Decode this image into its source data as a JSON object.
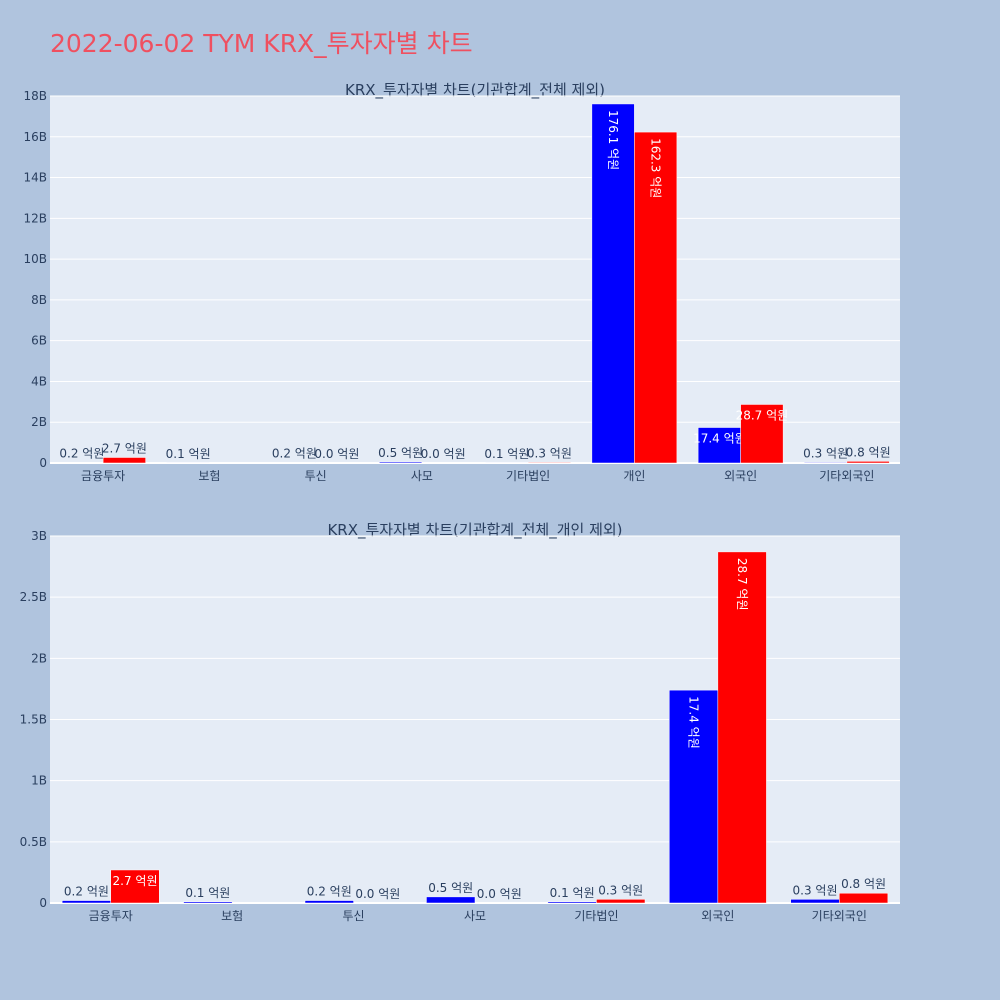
{
  "page": {
    "title": "2022-06-02 TYM KRX_투자자별 차트"
  },
  "colors": {
    "background": "#b0c4de",
    "plot_bg": "#e5ecf6",
    "buy": "#0000ff",
    "sell": "#ff0000",
    "title": "#ef5060"
  },
  "chart_data": [
    {
      "type": "bar",
      "title": "KRX_투자자별 차트(기관합계_전체 제외)",
      "categories": [
        "금융투자",
        "보험",
        "투신",
        "사모",
        "기타법인",
        "개인",
        "외국인",
        "기타외국인"
      ],
      "ylim": [
        0,
        18000000000
      ],
      "yticks": [
        0,
        2000000000,
        4000000000,
        6000000000,
        8000000000,
        10000000000,
        12000000000,
        14000000000,
        16000000000,
        18000000000
      ],
      "ytick_labels": [
        "0",
        "2B",
        "4B",
        "6B",
        "8B",
        "10B",
        "12B",
        "14B",
        "16B",
        "18B"
      ],
      "grid": true,
      "series": [
        {
          "color": "#0000ff",
          "values": [
            20000000,
            10000000,
            20000000,
            50000000,
            10000000,
            17610000000,
            1740000000,
            30000000
          ],
          "labels": [
            "0.2 억원",
            "0.1 억원",
            "0.2 억원",
            "0.5 억원",
            "0.1 억원",
            "176.1 억원",
            "17.4 억원",
            "0.3 억원"
          ]
        },
        {
          "color": "#ff0000",
          "values": [
            270000000,
            null,
            0,
            0,
            30000000,
            16230000000,
            2870000000,
            80000000
          ],
          "labels": [
            "2.7 억원",
            "",
            "0.0 억원",
            "0.0 억원",
            "0.3 억원",
            "162.3 억원",
            "28.7 억원",
            "0.8 억원"
          ]
        }
      ]
    },
    {
      "type": "bar",
      "title": "KRX_투자자별 차트(기관합계_전체_개인 제외)",
      "categories": [
        "금융투자",
        "보험",
        "투신",
        "사모",
        "기타법인",
        "외국인",
        "기타외국인"
      ],
      "ylim": [
        0,
        3000000000
      ],
      "yticks": [
        0,
        500000000,
        1000000000,
        1500000000,
        2000000000,
        2500000000,
        3000000000
      ],
      "ytick_labels": [
        "0",
        "0.5B",
        "1B",
        "1.5B",
        "2B",
        "2.5B",
        "3B"
      ],
      "grid": true,
      "series": [
        {
          "color": "#0000ff",
          "values": [
            20000000,
            10000000,
            20000000,
            50000000,
            10000000,
            1740000000,
            30000000
          ],
          "labels": [
            "0.2 억원",
            "0.1 억원",
            "0.2 억원",
            "0.5 억원",
            "0.1 억원",
            "17.4 억원",
            "0.3 억원"
          ]
        },
        {
          "color": "#ff0000",
          "values": [
            270000000,
            null,
            0,
            0,
            30000000,
            2870000000,
            80000000
          ],
          "labels": [
            "2.7 억원",
            "",
            "0.0 억원",
            "0.0 억원",
            "0.3 억원",
            "28.7 억원",
            "0.8 억원"
          ]
        }
      ]
    }
  ]
}
